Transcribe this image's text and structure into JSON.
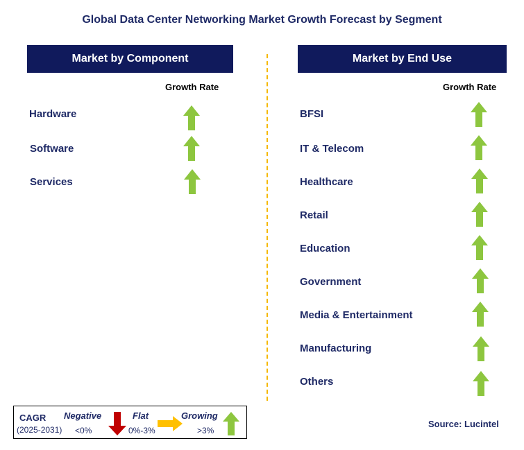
{
  "title": "Global Data Center Networking Market Growth Forecast by Segment",
  "left_panel": {
    "header": "Market by Component",
    "growth_rate_label": "Growth Rate",
    "items": [
      {
        "label": "Hardware",
        "trend": "growing"
      },
      {
        "label": "Software",
        "trend": "growing"
      },
      {
        "label": "Services",
        "trend": "growing"
      }
    ]
  },
  "right_panel": {
    "header": "Market by End Use",
    "growth_rate_label": "Growth Rate",
    "items": [
      {
        "label": "BFSI",
        "trend": "growing"
      },
      {
        "label": "IT & Telecom",
        "trend": "growing"
      },
      {
        "label": "Healthcare",
        "trend": "growing"
      },
      {
        "label": "Retail",
        "trend": "growing"
      },
      {
        "label": "Education",
        "trend": "growing"
      },
      {
        "label": "Government",
        "trend": "growing"
      },
      {
        "label": "Media & Entertainment",
        "trend": "growing"
      },
      {
        "label": "Manufacturing",
        "trend": "growing"
      },
      {
        "label": "Others",
        "trend": "growing"
      }
    ]
  },
  "legend": {
    "cagr_label": "CAGR",
    "period": "(2025-2031)",
    "negative": {
      "label": "Negative",
      "range": "<0%",
      "icon": "down-arrow-icon",
      "color": "#c00000"
    },
    "flat": {
      "label": "Flat",
      "range": "0%-3%",
      "icon": "right-arrow-icon",
      "color": "#ffc000"
    },
    "growing": {
      "label": "Growing",
      "range": ">3%",
      "icon": "up-arrow-icon",
      "color": "#8dc63f"
    }
  },
  "source": "Source: Lucintel",
  "colors": {
    "header_bg": "#101a5c",
    "label_text": "#1f2a66",
    "divider": "#f5b800",
    "growing_arrow": "#8dc63f"
  }
}
